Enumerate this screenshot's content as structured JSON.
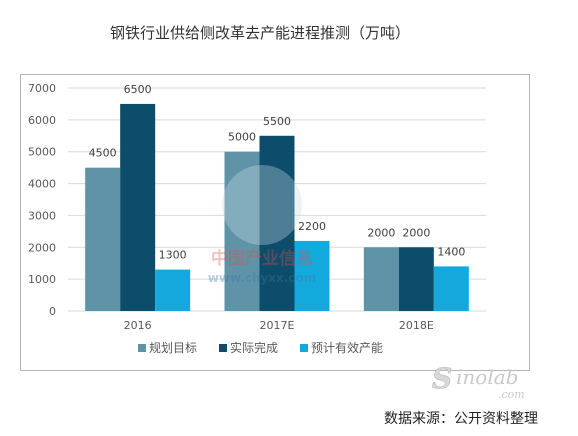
{
  "chart_data": {
    "type": "bar",
    "title": "钢铁行业供给侧改革去产能进程推测（万吨）",
    "categories": [
      "2016",
      "2017E",
      "2018E"
    ],
    "series": [
      {
        "name": "规划目标",
        "values": [
          4500,
          5000,
          2000
        ],
        "color": "#5f93a8"
      },
      {
        "name": "实际完成",
        "values": [
          6500,
          5500,
          2000
        ],
        "color": "#0b4d6a"
      },
      {
        "name": "预计有效产能",
        "values": [
          1300,
          2200,
          1400
        ],
        "color": "#14a9dd"
      }
    ],
    "ylim": [
      0,
      7000
    ],
    "yticks": [
      0,
      1000,
      2000,
      3000,
      4000,
      5000,
      6000,
      7000
    ],
    "grid": true,
    "legend_position": "bottom"
  },
  "source_note": "数据来源：公开资料整理",
  "watermarks": {
    "center_cn": "中国产业信息",
    "center_url": "www.chyxx.com",
    "corner_logo": "Sinolab .com"
  }
}
